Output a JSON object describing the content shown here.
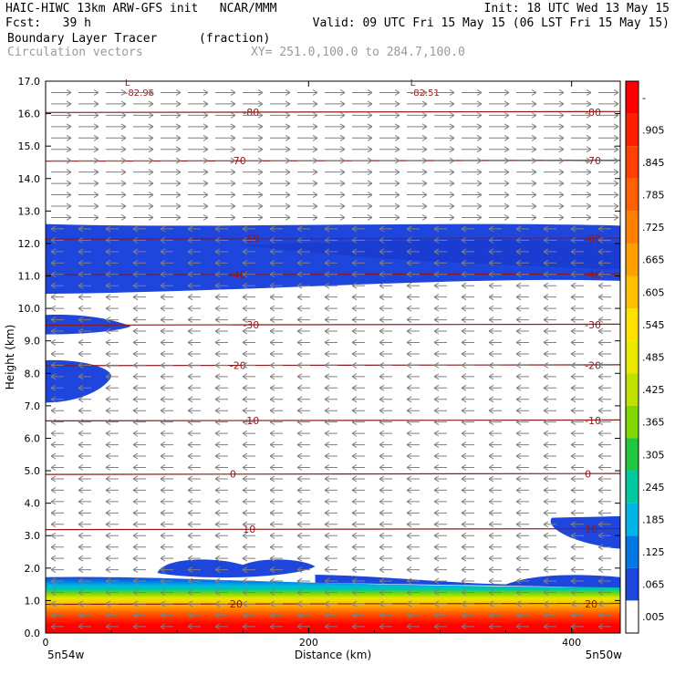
{
  "header": {
    "left1": "HAIC-HIWC 13km ARW-GFS init   NCAR/MMM",
    "left2": "Fcst:   39 h",
    "right1": "Init: 18 UTC Wed 13 May 15",
    "right2": "Valid: 09 UTC Fri 15 May 15 (06 LST Fri 15 May 15)",
    "field": "Boundary Layer Tracer",
    "field_units": "(fraction)",
    "overlay": "Circulation vectors",
    "xy": "XY= 251.0,100.0 to 284.7,100.0"
  },
  "colors": {
    "contour": "#8b1a1a",
    "vector": "#808080",
    "low_blue": "#1e46dc"
  },
  "chart_data": {
    "type": "heatmap",
    "xlabel": "Distance (km)",
    "ylabel": "Height (km)",
    "xlim": [
      0,
      437
    ],
    "ylim": [
      0,
      17
    ],
    "xticks": [
      0,
      200,
      400
    ],
    "x_end_labels": [
      "5n54w",
      "5n50w"
    ],
    "yticks": [
      "0.0",
      "1.0",
      "2.0",
      "3.0",
      "4.0",
      "5.0",
      "6.0",
      "7.0",
      "8.0",
      "9.0",
      "10.0",
      "11.0",
      "12.0",
      "13.0",
      "14.0",
      "15.0",
      "16.0",
      "17.0"
    ],
    "colorbar": {
      "labels": [
        "-",
        ".905",
        ".845",
        ".785",
        ".725",
        ".665",
        ".605",
        ".545",
        ".485",
        ".425",
        ".365",
        ".305",
        ".245",
        ".185",
        ".125",
        ".065",
        ".005"
      ],
      "colors": [
        "#ff0000",
        "#ff2000",
        "#ff4000",
        "#ff6000",
        "#ff8000",
        "#ffa000",
        "#ffc000",
        "#ffe000",
        "#e8e800",
        "#c0e000",
        "#80d800",
        "#20c840",
        "#00c8a0",
        "#00b4e6",
        "#0078e6",
        "#1e46dc",
        "#ffffff"
      ]
    },
    "temperature_contours": [
      {
        "label": "-80",
        "height": 16.05
      },
      {
        "label": "-70",
        "height": 14.55
      },
      {
        "label": "-60",
        "height": 12.15
      },
      {
        "label": "-40",
        "height": 11.05
      },
      {
        "label": "-30",
        "height": 9.5
      },
      {
        "label": "-20",
        "height": 8.25
      },
      {
        "label": "-10",
        "height": 6.55
      },
      {
        "label": "0",
        "height": 4.9
      },
      {
        "label": "10",
        "height": 3.2
      },
      {
        "label": "20",
        "height": 0.9
      }
    ],
    "minima": [
      {
        "label": "L",
        "value": "-82.96",
        "x": 63,
        "height": 16.8
      },
      {
        "label": "L",
        "value": "-82.51",
        "x": 280,
        "height": 16.8
      }
    ],
    "tracer_regions": [
      {
        "name": "upper layer",
        "base_km": 10.5,
        "top_km": 12.6,
        "fraction": 0.065
      },
      {
        "name": "mid-left patch 1",
        "base_km": 9.2,
        "top_km": 9.8,
        "fraction": 0.065
      },
      {
        "name": "mid-left patch 2",
        "base_km": 7.1,
        "top_km": 8.4,
        "fraction": 0.065
      },
      {
        "name": "right patch",
        "base_km": 2.6,
        "top_km": 3.6,
        "fraction": 0.065
      },
      {
        "name": "boundary layer",
        "base_km": 0.0,
        "top_km": 1.7,
        "fraction": 1.0
      }
    ],
    "vectors": {
      "upper_direction": "east",
      "upper_above_km": 12.6,
      "lower_direction": "west"
    }
  }
}
